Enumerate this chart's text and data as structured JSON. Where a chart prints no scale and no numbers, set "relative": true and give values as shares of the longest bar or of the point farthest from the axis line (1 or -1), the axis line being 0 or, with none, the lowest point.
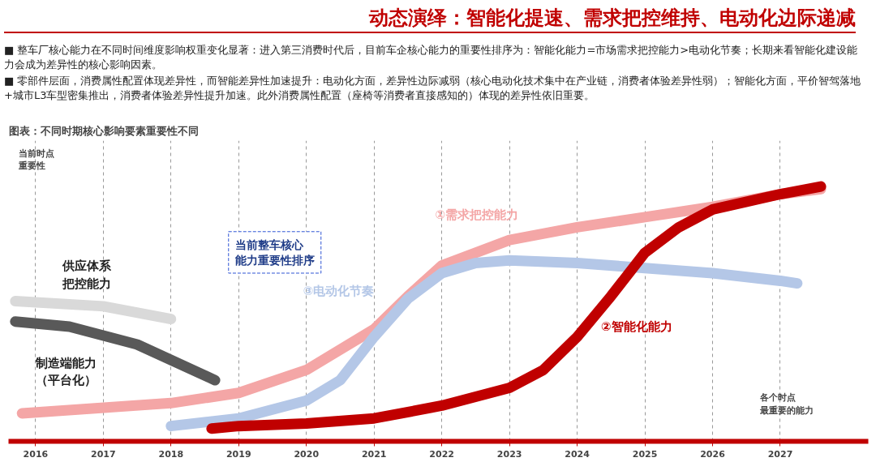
{
  "chart_data": {
    "type": "line",
    "relative": true,
    "title": "动态演绎：智能化提速、需求把控维持、电动化边际递减",
    "annotations": [
      "■ 整车厂核心能力在不同时间维度影响权重变化显著：进入第三消费时代后，目前车企核心能力的重要性排序为：智能化能力=市场需求把控能力>电动化节奏；长期来看智能化建设能力会成为差异性的核心影响因素。",
      "■ 零部件层面，消费属性配置体现差异性，而智能差异性加速提升：电动化方面，差异性边际减弱（核心电动化技术集中在产业链，消费者体验差异性弱）；智能化方面，平价智驾落地+城市L3车型密集推出，消费者体验差异性提升加速。此外消费属性配置（座椅等消费者直接感知的）体现的差异性依旧重要。",
      "图表：不同时期核心影响要素重要性不同",
      "当前整车核心能力重要性排序"
    ],
    "ylabel": "当前时点重要性",
    "xlabel": "各个时点最重要的能力",
    "xlim": [
      2015.6,
      2028.3
    ],
    "xticks": [
      2016,
      2017,
      2018,
      2019,
      2020,
      2021,
      2022,
      2023,
      2024,
      2025,
      2026,
      2027
    ],
    "grid": "x",
    "line_style": "solid",
    "series": [
      {
        "name": "①需求把控能力",
        "color": "#f4a6a6",
        "x": [
          2015.8,
          2018,
          2019,
          2020,
          2021,
          2021.5,
          2022,
          2023,
          2024,
          2025,
          2026,
          2027,
          2027.6
        ],
        "values": [
          0.11,
          0.15,
          0.19,
          0.28,
          0.44,
          0.57,
          0.69,
          0.79,
          0.84,
          0.88,
          0.92,
          0.97,
          0.99
        ]
      },
      {
        "name": "③电动化节奏",
        "color": "#b4c7e7",
        "x": [
          2018,
          2019,
          2020,
          2020.5,
          2021,
          2021.5,
          2022,
          2022.5,
          2023,
          2024,
          2025,
          2026,
          2027,
          2027.25
        ],
        "values": [
          0.06,
          0.09,
          0.16,
          0.24,
          0.41,
          0.56,
          0.66,
          0.7,
          0.71,
          0.7,
          0.68,
          0.66,
          0.63,
          0.62
        ]
      },
      {
        "name": "②智能化能力",
        "color": "#c00000",
        "x": [
          2018.6,
          2019,
          2020,
          2021,
          2022,
          2023,
          2023.5,
          2024,
          2024.5,
          2025,
          2025.5,
          2026,
          2027,
          2027.6
        ],
        "values": [
          0.05,
          0.06,
          0.07,
          0.09,
          0.14,
          0.21,
          0.28,
          0.41,
          0.57,
          0.74,
          0.84,
          0.91,
          0.97,
          1.0
        ]
      },
      {
        "name": "供应体系把控能力",
        "color": "#d9d9d9",
        "x": [
          2015.7,
          2017,
          2018
        ],
        "values": [
          0.55,
          0.53,
          0.48
        ]
      },
      {
        "name": "制造端能力（平台化）",
        "color": "#595959",
        "x": [
          2015.7,
          2016.5,
          2017.5,
          2018.65
        ],
        "values": [
          0.47,
          0.45,
          0.38,
          0.24
        ]
      }
    ]
  }
}
